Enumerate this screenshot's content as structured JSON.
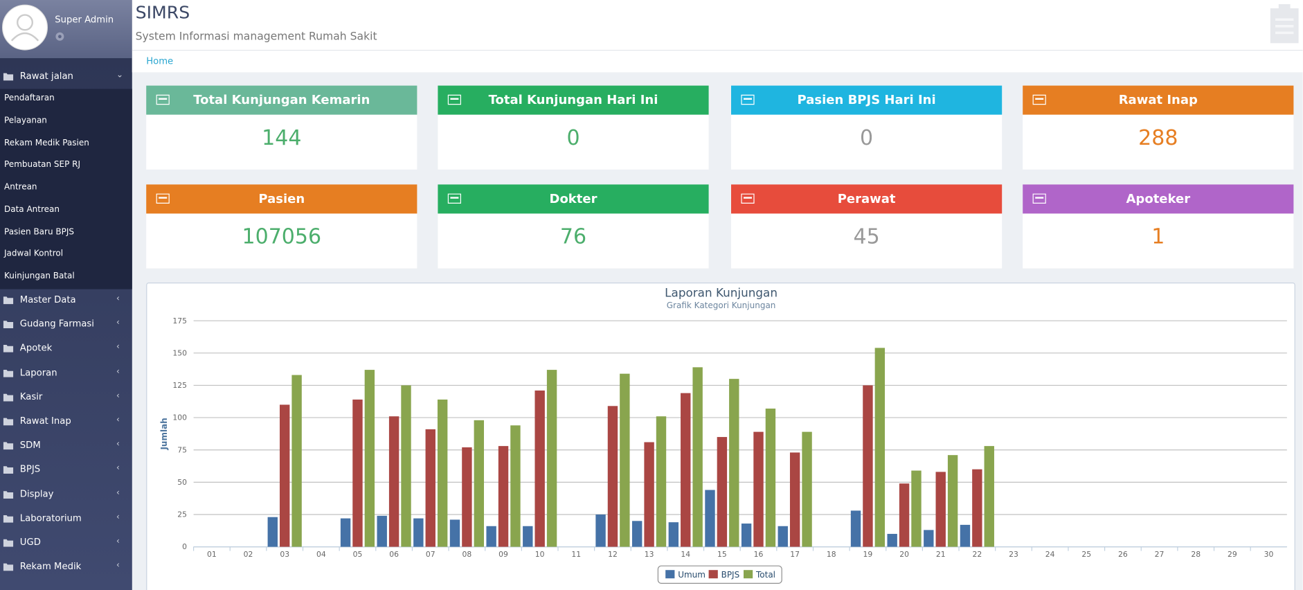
{
  "sidebar": {
    "user": "Super Admin",
    "menu": [
      {
        "label": "Rawat jalan",
        "items": [
          "Pendaftaran",
          "Pelayanan",
          "Rekam Medik Pasien",
          "Pembuatan SEP RJ",
          "Antrean",
          "Data Antrean",
          "Pasien Baru BPJS",
          "Jadwal Kontrol",
          "Kuinjungan Batal"
        ]
      },
      {
        "label": "Master Data"
      },
      {
        "label": "Gudang Farmasi"
      },
      {
        "label": "Apotek"
      },
      {
        "label": "Laporan"
      },
      {
        "label": "Kasir"
      },
      {
        "label": "Rawat Inap"
      },
      {
        "label": "SDM"
      },
      {
        "label": "BPJS"
      },
      {
        "label": "Display"
      },
      {
        "label": "Laboratorium"
      },
      {
        "label": "UGD"
      },
      {
        "label": "Rekam Medik"
      }
    ]
  },
  "header": {
    "title": "SIMRS",
    "subtitle": "System Informasi management Rumah Sakit",
    "breadcrumb": "Home"
  },
  "cards": [
    {
      "title": "Total Kunjungan Kemarin",
      "value": 144,
      "color": "#6ab899",
      "value_color": "#4cae6c"
    },
    {
      "title": "Total Kunjungan Hari Ini",
      "value": 0,
      "color": "#27ae60",
      "value_color": "#4cae6c"
    },
    {
      "title": "Pasien BPJS Hari Ini",
      "value": 0,
      "color": "#1fb5e0",
      "value_color": "#999999"
    },
    {
      "title": "Rawat Inap",
      "value": 288,
      "color": "#e67e22",
      "value_color": "#e67e22"
    },
    {
      "title": "Pasien",
      "value": 107056,
      "color": "#e67e22",
      "value_color": "#4cae6c"
    },
    {
      "title": "Dokter",
      "value": 76,
      "color": "#27ae60",
      "value_color": "#4cae6c"
    },
    {
      "title": "Perawat",
      "value": 45,
      "color": "#e74c3c",
      "value_color": "#999999"
    },
    {
      "title": "Apoteker",
      "value": 1,
      "color": "#b065c9",
      "value_color": "#e67e22"
    }
  ],
  "chart_data": {
    "type": "bar",
    "title": "Laporan Kunjungan",
    "subtitle": "Grafik Kategori Kunjungan",
    "y_label": "Jumlah",
    "categories": [
      "01",
      "02",
      "03",
      "04",
      "05",
      "06",
      "07",
      "08",
      "09",
      "10",
      "11",
      "12",
      "13",
      "14",
      "15",
      "16",
      "17",
      "18",
      "19",
      "20",
      "21",
      "22",
      "23",
      "24",
      "25",
      "26",
      "27",
      "28",
      "29",
      "30"
    ],
    "series": [
      {
        "name": "Umum",
        "color": "#4572a7",
        "values": [
          0,
          0,
          23,
          0,
          22,
          24,
          22,
          21,
          16,
          16,
          0,
          25,
          20,
          19,
          44,
          18,
          16,
          0,
          28,
          10,
          13,
          17,
          0,
          0,
          0,
          0,
          0,
          0,
          0,
          0
        ]
      },
      {
        "name": "BPJS",
        "color": "#aa4643",
        "values": [
          0,
          0,
          110,
          0,
          114,
          101,
          91,
          77,
          78,
          121,
          0,
          109,
          81,
          119,
          85,
          89,
          73,
          0,
          125,
          49,
          58,
          60,
          0,
          0,
          0,
          0,
          0,
          0,
          0,
          0
        ]
      },
      {
        "name": "Total",
        "color": "#89a54e",
        "values": [
          0,
          0,
          133,
          0,
          137,
          125,
          114,
          98,
          94,
          137,
          0,
          134,
          101,
          139,
          130,
          107,
          89,
          0,
          154,
          59,
          71,
          78,
          0,
          0,
          0,
          0,
          0,
          0,
          0,
          0
        ]
      }
    ],
    "ylim": [
      0,
      175
    ],
    "yticks": [
      0,
      25,
      50,
      75,
      100,
      125,
      150,
      175
    ],
    "grid": true
  }
}
